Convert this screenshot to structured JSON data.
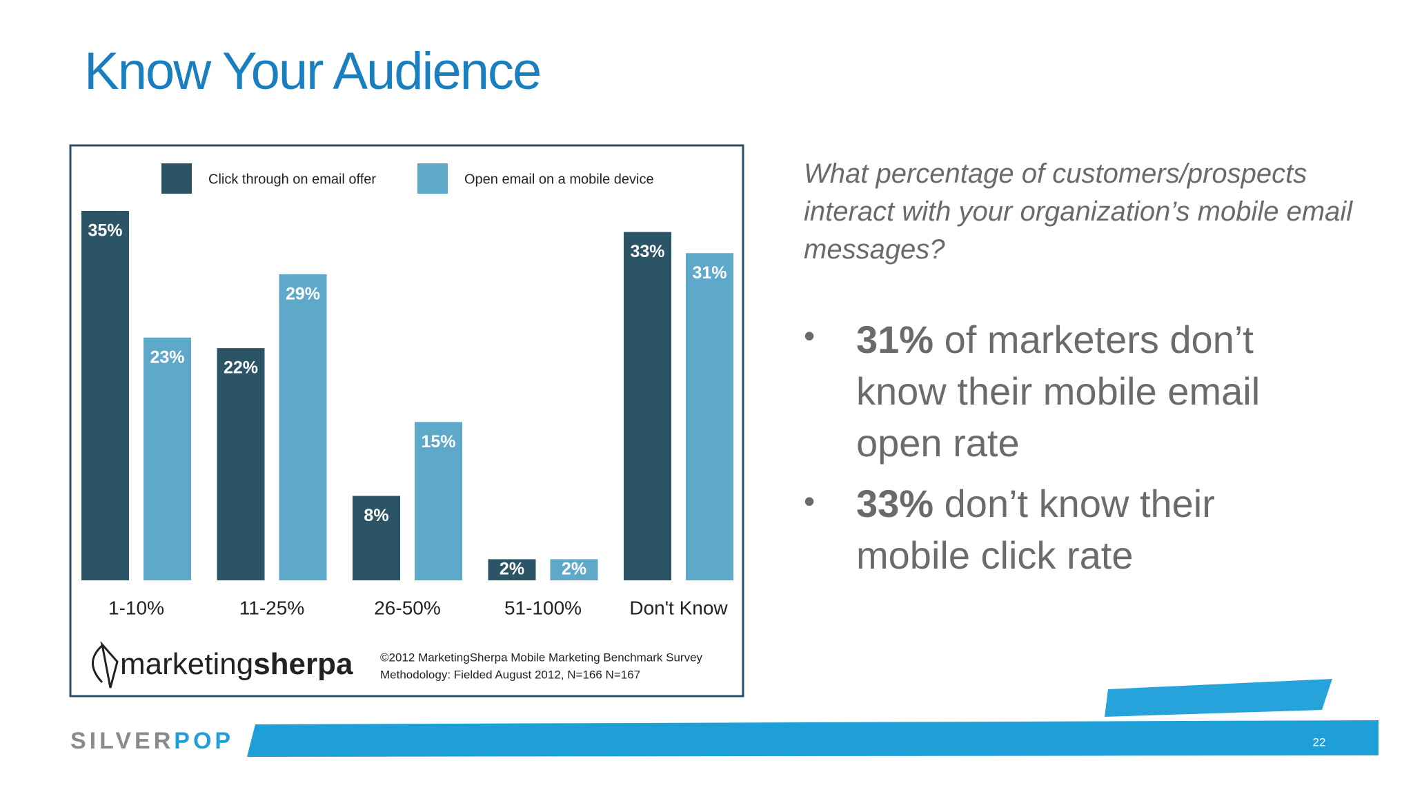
{
  "slide": {
    "title": "Know Your Audience",
    "question": "What percentage of customers/prospects interact with your organization’s mobile email messages?",
    "bullets": [
      {
        "lead": "31%",
        "text": "of marketers don’t know their mobile email open rate"
      },
      {
        "lead": "33%",
        "text": "don’t know their mobile click rate"
      }
    ],
    "logo": {
      "light": "marketing",
      "bold": "sherpa"
    },
    "source": [
      "©2012 MarketingSherpa Mobile Marketing Benchmark Survey",
      "Methodology: Fielded August 2012, N=166 N=167"
    ],
    "brand": {
      "gray": "SILVER",
      "blue": "POP"
    },
    "page_number": "22"
  },
  "chart_data": {
    "type": "bar",
    "categories": [
      "1-10%",
      "11-25%",
      "26-50%",
      "51-100%",
      "Don't Know"
    ],
    "series": [
      {
        "name": "Click through on email offer",
        "color": "#2b5566",
        "values": [
          35,
          22,
          8,
          2,
          33
        ],
        "value_labels": [
          "35%",
          "22%",
          "8%",
          "2%",
          "33%"
        ]
      },
      {
        "name": "Open email on a mobile device",
        "color": "#5ea9c9",
        "values": [
          23,
          29,
          15,
          2,
          31
        ],
        "value_labels": [
          "23%",
          "29%",
          "15%",
          "2%",
          "31%"
        ]
      }
    ],
    "legend": "top"
  }
}
